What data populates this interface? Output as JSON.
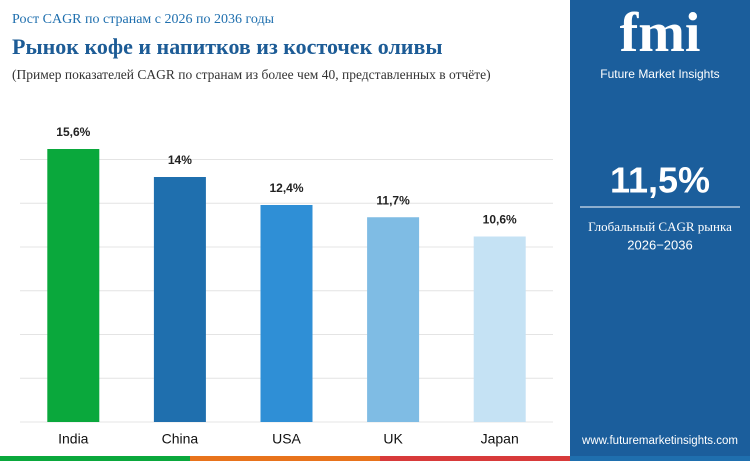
{
  "chart_data": {
    "type": "bar",
    "subtitle": "Рост CAGR по странам с 2026 по 2036 годы",
    "title": "Рынок кофе и напитков из косточек оливы",
    "note": "(Пример показателей CAGR по странам из более чем 40, представленных в отчёте)",
    "categories": [
      "India",
      "China",
      "USA",
      "UK",
      "Japan"
    ],
    "values": [
      15.6,
      14,
      12.4,
      11.7,
      10.6
    ],
    "value_labels": [
      "15,6%",
      "14%",
      "12,4%",
      "11,7%",
      "10,6%"
    ],
    "colors": [
      "#0aa83c",
      "#1f6fae",
      "#2f8fd6",
      "#7fbce4",
      "#c5e2f4"
    ],
    "ylim": [
      0,
      16
    ],
    "yticks": [
      0,
      2.5,
      5,
      7.5,
      10,
      12.5,
      15
    ],
    "grid": true
  },
  "panel": {
    "logo": "fmi",
    "company": "Future Market Insights",
    "global_cagr": "11,5%",
    "global_cagr_label": "Глобальный CAGR рынка",
    "period": "2026−2036",
    "website": "www.futuremarketinsights.com"
  }
}
